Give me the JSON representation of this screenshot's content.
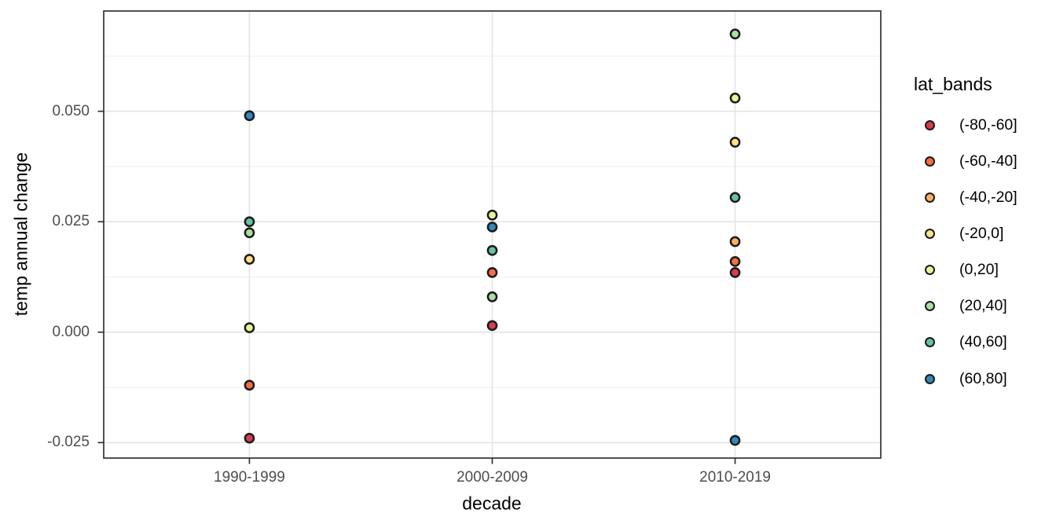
{
  "chart_data": {
    "type": "scatter",
    "title": "",
    "xlabel": "decade",
    "ylabel": "temp annual change",
    "categories": [
      "1990-1999",
      "2000-2009",
      "2010-2019"
    ],
    "y_ticks": [
      {
        "value": 0.05,
        "label": "0.050"
      },
      {
        "value": 0.025,
        "label": "0.025"
      },
      {
        "value": 0.0,
        "label": "0.000"
      },
      {
        "value": -0.025,
        "label": "-0.025"
      }
    ],
    "y_minor": [
      0.0625,
      0.0375,
      0.0125,
      -0.0125
    ],
    "ylim": [
      -0.0285,
      0.0727
    ],
    "grid": true,
    "legend": {
      "title": "lat_bands",
      "position": "right"
    },
    "series": [
      {
        "name": "(-80,-60]",
        "color": "#d53e4f",
        "points": [
          {
            "decade": "1990-1999",
            "value": -0.024
          },
          {
            "decade": "2000-2009",
            "value": 0.0015
          },
          {
            "decade": "2010-2019",
            "value": 0.0135
          }
        ]
      },
      {
        "name": "(-60,-40]",
        "color": "#f46d43",
        "points": [
          {
            "decade": "1990-1999",
            "value": -0.012
          },
          {
            "decade": "2000-2009",
            "value": 0.0135
          },
          {
            "decade": "2010-2019",
            "value": 0.016
          }
        ]
      },
      {
        "name": "(-40,-20]",
        "color": "#fdae61",
        "points": [
          {
            "decade": "2010-2019",
            "value": 0.0205
          }
        ]
      },
      {
        "name": "(-20,0]",
        "color": "#fee08b",
        "points": [
          {
            "decade": "1990-1999",
            "value": 0.0165
          },
          {
            "decade": "2010-2019",
            "value": 0.043
          }
        ]
      },
      {
        "name": "(0,20]",
        "color": "#e6f598",
        "points": [
          {
            "decade": "1990-1999",
            "value": 0.001
          },
          {
            "decade": "2000-2009",
            "value": 0.0265
          },
          {
            "decade": "2010-2019",
            "value": 0.053
          }
        ]
      },
      {
        "name": "(20,40]",
        "color": "#abdda4",
        "points": [
          {
            "decade": "1990-1999",
            "value": 0.0225
          },
          {
            "decade": "2000-2009",
            "value": 0.008
          },
          {
            "decade": "2010-2019",
            "value": 0.0675
          }
        ]
      },
      {
        "name": "(40,60]",
        "color": "#66c2a5",
        "points": [
          {
            "decade": "1990-1999",
            "value": 0.025
          },
          {
            "decade": "2000-2009",
            "value": 0.0185
          },
          {
            "decade": "2010-2019",
            "value": 0.0305
          }
        ]
      },
      {
        "name": "(60,80]",
        "color": "#3288bd",
        "points": [
          {
            "decade": "1990-1999",
            "value": 0.049
          },
          {
            "decade": "2000-2009",
            "value": 0.0238
          },
          {
            "decade": "2010-2019",
            "value": -0.0245
          }
        ]
      }
    ]
  }
}
